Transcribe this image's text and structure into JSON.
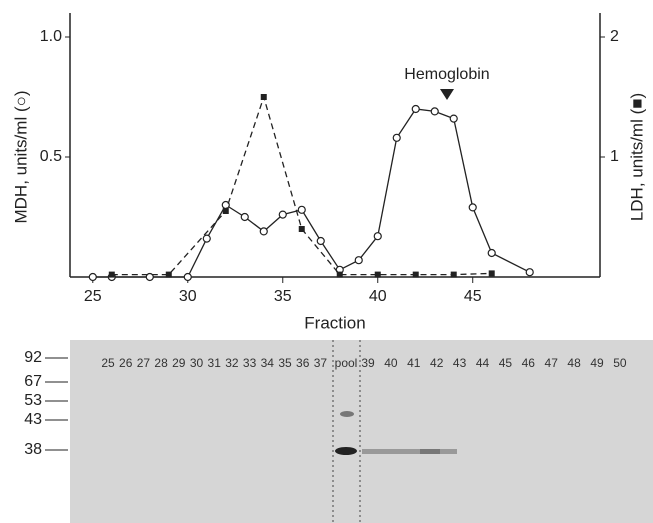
{
  "chart_data": {
    "type": "line",
    "xlabel": "Fraction",
    "ylabel": "MDH, units/ml (○)",
    "y2label": "LDH, units/ml (■)",
    "annotation": "Hemoglobin",
    "xlim": [
      23.8,
      51.7
    ],
    "xticks": [
      25,
      30,
      35,
      40,
      45
    ],
    "ylim": [
      0,
      1.1
    ],
    "yticks": [
      0.5,
      {
        "value": 1,
        "label": "1.0"
      }
    ],
    "y2lim": [
      0,
      2.2
    ],
    "y2ticks": [
      1,
      2
    ],
    "series": [
      {
        "marker": "circle",
        "dash": false,
        "color": "#222",
        "x": [
          25,
          26,
          28,
          30,
          31,
          32,
          33,
          34,
          35,
          36,
          37,
          38,
          39,
          40,
          41,
          42,
          43,
          44,
          45,
          46,
          48
        ],
        "values": [
          0,
          0,
          0,
          0,
          0.16,
          0.3,
          0.25,
          0.19,
          0.26,
          0.28,
          0.15,
          0.03,
          0.07,
          0.17,
          0.58,
          0.7,
          0.69,
          0.66,
          0.29,
          0.1,
          0.02
        ]
      },
      {
        "marker": "square",
        "dash": true,
        "color": "#222",
        "axis": "y2",
        "x": [
          26,
          29,
          32,
          34,
          36,
          38,
          40,
          42,
          44,
          46
        ],
        "values": [
          0.02,
          0.02,
          0.55,
          1.5,
          0.4,
          0.02,
          0.02,
          0.02,
          0.02,
          0.03
        ]
      }
    ]
  },
  "gel": {
    "markers": [
      "92",
      "67",
      "53",
      "43",
      "38"
    ],
    "lanes": [
      "25",
      "26",
      "27",
      "28",
      "29",
      "30",
      "31",
      "32",
      "33",
      "34",
      "35",
      "36",
      "37",
      "pool",
      "39",
      "40",
      "41",
      "42",
      "43",
      "44",
      "45",
      "46",
      "47",
      "48",
      "49",
      "50"
    ]
  }
}
